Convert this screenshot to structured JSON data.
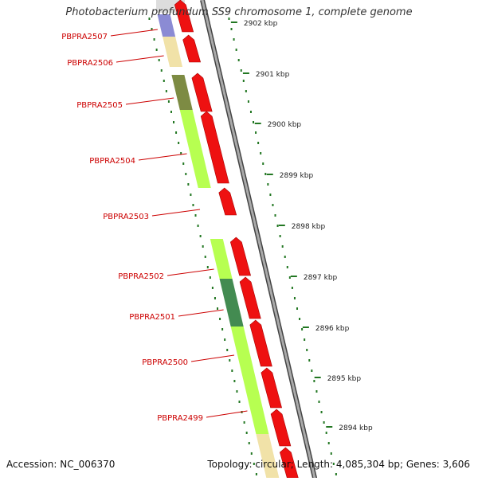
{
  "title": "Photobacterium profundum SS9 chromosome 1, complete genome",
  "footer": {
    "accession": "Accession: NC_006370",
    "topology": "Topology: circular; Length: 4,085,304 bp; Genes: 3,606"
  },
  "colors": {
    "strand_gene": "#ee1111",
    "backbone": "#888888",
    "tick": "#227722",
    "label_red": "#cc0000",
    "lime": "#aaff33",
    "olive": "#667722",
    "tan": "#eedd99",
    "purple": "#7777cc",
    "darkgreen": "#227733"
  },
  "scale": {
    "labels": [
      "2902 kbp",
      "2901 kbp",
      "2900 kbp",
      "2899 kbp",
      "2898 kbp",
      "2897 kbp",
      "2896 kbp",
      "2895 kbp",
      "2894 kbp"
    ]
  },
  "gene_labels": [
    "PBPRA2507",
    "PBPRA2506",
    "PBPRA2505",
    "PBPRA2504",
    "PBPRA2503",
    "PBPRA2502",
    "PBPRA2501",
    "PBPRA2500",
    "PBPRA2499"
  ]
}
